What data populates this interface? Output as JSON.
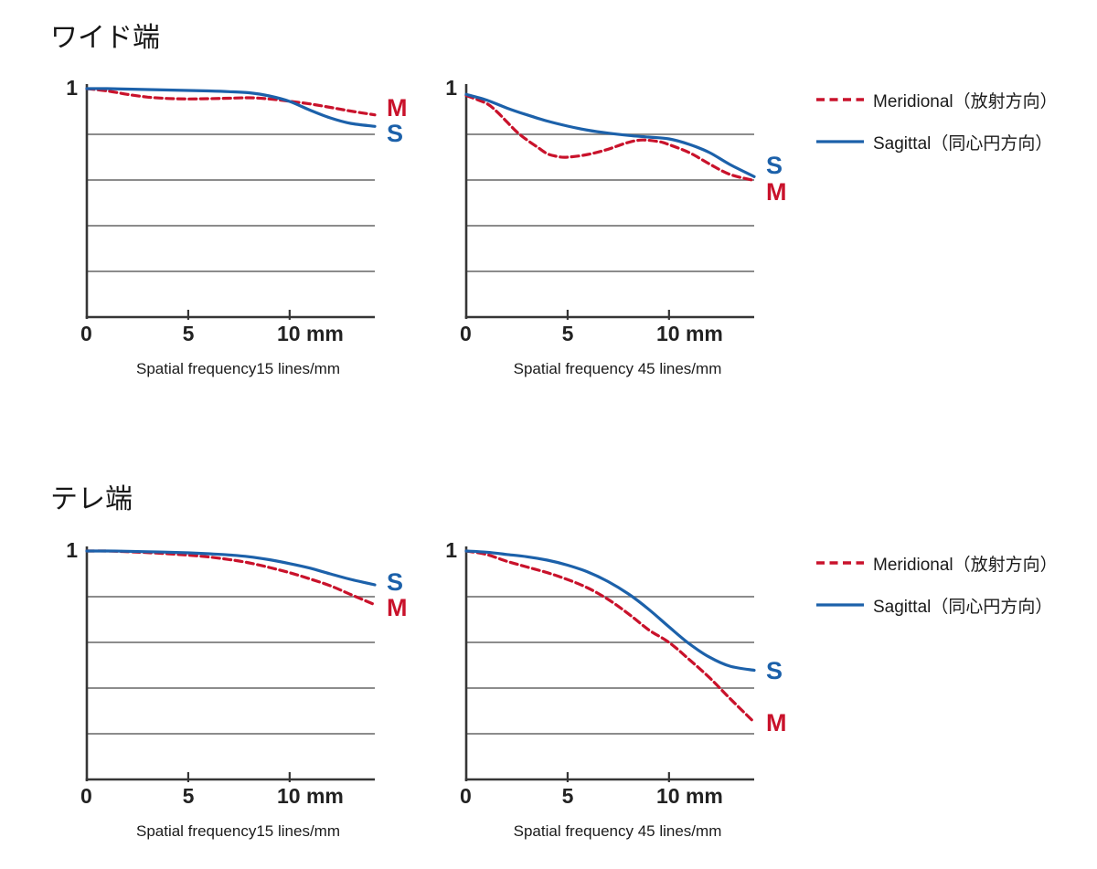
{
  "sections": [
    {
      "title": "ワイド端"
    },
    {
      "title": "テレ端"
    }
  ],
  "legend": {
    "meridional_label": "Meridional（放射方向）",
    "sagittal_label": "Sagittal（同心円方向）"
  },
  "style": {
    "meridional_color": "#c9122b",
    "sagittal_color": "#1c61aa",
    "grid_color": "#7b7b7b",
    "axis_color": "#363636",
    "text_color": "#1b1b1b"
  },
  "chart_data": [
    {
      "type": "line",
      "section": "ワイド端",
      "caption": "Spatial frequency15 lines/mm",
      "ytick_top_label": "1",
      "xtick_labels": [
        "0",
        "5",
        "10 mm"
      ],
      "xticks_mm": [
        0,
        5,
        10
      ],
      "xlim": [
        0,
        14.2
      ],
      "ylim": [
        0,
        1
      ],
      "gridlines_y": [
        0.2,
        0.4,
        0.6,
        0.8
      ],
      "legend_position": "right",
      "series": [
        {
          "name": "Meridional",
          "short_label": "M",
          "style": "dashed",
          "x": [
            0,
            1,
            2,
            3,
            4,
            5,
            6,
            7,
            8,
            9,
            10,
            11,
            12,
            13,
            14.2
          ],
          "y": [
            1.0,
            0.99,
            0.975,
            0.963,
            0.957,
            0.955,
            0.956,
            0.958,
            0.96,
            0.955,
            0.945,
            0.933,
            0.918,
            0.902,
            0.885
          ]
        },
        {
          "name": "Sagittal",
          "short_label": "S",
          "style": "solid",
          "x": [
            0,
            1,
            2,
            3,
            4,
            5,
            6,
            7,
            8,
            9,
            10,
            11,
            12,
            13,
            14.2
          ],
          "y": [
            1.0,
            1.0,
            0.998,
            0.996,
            0.994,
            0.992,
            0.99,
            0.987,
            0.982,
            0.968,
            0.944,
            0.906,
            0.872,
            0.848,
            0.835
          ]
        }
      ]
    },
    {
      "type": "line",
      "section": "ワイド端",
      "caption": "Spatial frequency 45 lines/mm",
      "ytick_top_label": "1",
      "xtick_labels": [
        "0",
        "5",
        "10 mm"
      ],
      "xticks_mm": [
        0,
        5,
        10
      ],
      "xlim": [
        0,
        14.2
      ],
      "ylim": [
        0,
        1
      ],
      "gridlines_y": [
        0.2,
        0.4,
        0.6,
        0.8
      ],
      "legend_position": "right",
      "series": [
        {
          "name": "Meridional",
          "short_label": "M",
          "style": "dashed",
          "x": [
            0,
            1,
            1.5,
            2,
            2.5,
            3,
            3.5,
            4,
            4.5,
            5,
            6,
            7,
            8,
            8.7,
            9.5,
            10,
            11,
            12,
            13,
            14.2
          ],
          "y": [
            0.97,
            0.935,
            0.9,
            0.855,
            0.81,
            0.775,
            0.745,
            0.715,
            0.703,
            0.7,
            0.712,
            0.735,
            0.765,
            0.775,
            0.768,
            0.755,
            0.72,
            0.67,
            0.625,
            0.598
          ]
        },
        {
          "name": "Sagittal",
          "short_label": "S",
          "style": "solid",
          "x": [
            0,
            1,
            2,
            3,
            4,
            5,
            6,
            7,
            8,
            9,
            10,
            11,
            12,
            13,
            14.2
          ],
          "y": [
            0.975,
            0.95,
            0.915,
            0.885,
            0.858,
            0.836,
            0.818,
            0.805,
            0.795,
            0.788,
            0.78,
            0.756,
            0.72,
            0.668,
            0.615
          ]
        }
      ]
    },
    {
      "type": "line",
      "section": "テレ端",
      "caption": "Spatial frequency15 lines/mm",
      "ytick_top_label": "1",
      "xtick_labels": [
        "0",
        "5",
        "10 mm"
      ],
      "xticks_mm": [
        0,
        5,
        10
      ],
      "xlim": [
        0,
        14.2
      ],
      "ylim": [
        0,
        1
      ],
      "gridlines_y": [
        0.2,
        0.4,
        0.6,
        0.8
      ],
      "legend_position": "right",
      "series": [
        {
          "name": "Meridional",
          "short_label": "M",
          "style": "dashed",
          "x": [
            0,
            1,
            2,
            3,
            4,
            5,
            6,
            7,
            8,
            9,
            10,
            11,
            12,
            13,
            14.2
          ],
          "y": [
            1.0,
            1.0,
            0.997,
            0.993,
            0.988,
            0.982,
            0.974,
            0.963,
            0.948,
            0.928,
            0.905,
            0.878,
            0.848,
            0.81,
            0.765
          ]
        },
        {
          "name": "Sagittal",
          "short_label": "S",
          "style": "solid",
          "x": [
            0,
            1,
            2,
            3,
            4,
            5,
            6,
            7,
            8,
            9,
            10,
            11,
            12,
            13,
            14.2
          ],
          "y": [
            1.0,
            1.0,
            0.999,
            0.997,
            0.995,
            0.992,
            0.988,
            0.983,
            0.975,
            0.962,
            0.945,
            0.925,
            0.9,
            0.876,
            0.852
          ]
        }
      ]
    },
    {
      "type": "line",
      "section": "テレ端",
      "caption": "Spatial frequency 45 lines/mm",
      "ytick_top_label": "1",
      "xtick_labels": [
        "0",
        "5",
        "10 mm"
      ],
      "xticks_mm": [
        0,
        5,
        10
      ],
      "xlim": [
        0,
        14.2
      ],
      "ylim": [
        0,
        1
      ],
      "gridlines_y": [
        0.2,
        0.4,
        0.6,
        0.8
      ],
      "legend_position": "right",
      "series": [
        {
          "name": "Meridional",
          "short_label": "M",
          "style": "dashed",
          "x": [
            0,
            1,
            2,
            3,
            4,
            5,
            6,
            7,
            8,
            9,
            10,
            11,
            12,
            13,
            14.2
          ],
          "y": [
            1.0,
            0.985,
            0.955,
            0.93,
            0.905,
            0.875,
            0.838,
            0.788,
            0.725,
            0.655,
            0.6,
            0.525,
            0.445,
            0.355,
            0.25
          ]
        },
        {
          "name": "Sagittal",
          "short_label": "S",
          "style": "solid",
          "x": [
            0,
            1,
            2,
            3,
            4,
            5,
            6,
            7,
            8,
            9,
            10,
            11,
            12,
            13,
            14.2
          ],
          "y": [
            1.0,
            0.995,
            0.985,
            0.975,
            0.96,
            0.938,
            0.908,
            0.866,
            0.812,
            0.745,
            0.668,
            0.594,
            0.535,
            0.496,
            0.478
          ]
        }
      ]
    }
  ]
}
